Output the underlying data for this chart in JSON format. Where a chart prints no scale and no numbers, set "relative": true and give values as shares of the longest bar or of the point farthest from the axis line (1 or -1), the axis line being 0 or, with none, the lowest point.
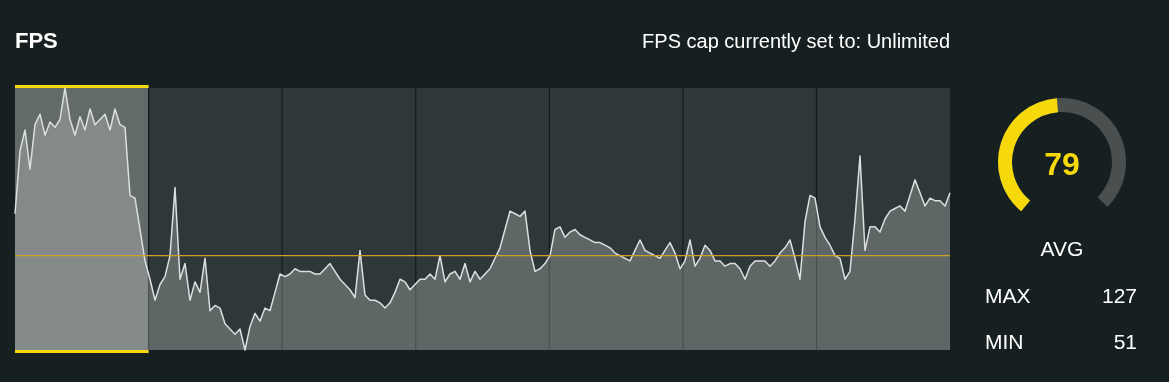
{
  "chart_data": [
    {
      "type": "area",
      "title": "FPS",
      "subtitle": "FPS cap currently set to: Unlimited",
      "relative": true,
      "categories": [
        null,
        null,
        null,
        null,
        null,
        null,
        null,
        null,
        null,
        null,
        null,
        null,
        null,
        null,
        null,
        null,
        null,
        null,
        null,
        null,
        null,
        null,
        null,
        null,
        null,
        null,
        null,
        null,
        null,
        null,
        null,
        null,
        null,
        null,
        null,
        null,
        null,
        null,
        null,
        null,
        null,
        null,
        null,
        null,
        null,
        null,
        null,
        null,
        null,
        null,
        null,
        null,
        null,
        null,
        null,
        null,
        null,
        null,
        null,
        null,
        null,
        null,
        null,
        null,
        null,
        null,
        null,
        null,
        null,
        null,
        null,
        null,
        null,
        null,
        null,
        null,
        null,
        null,
        null,
        null,
        null,
        null,
        null,
        null,
        null,
        null,
        null,
        null,
        null,
        null,
        null,
        null,
        null,
        null,
        null,
        null,
        null,
        null,
        null,
        null,
        null,
        null,
        null,
        null,
        null,
        null,
        null,
        null,
        null,
        null,
        null,
        null,
        null,
        null,
        null,
        null,
        null,
        null,
        null,
        null,
        null,
        null,
        null,
        null,
        null,
        null,
        null,
        null,
        null,
        null,
        null,
        null,
        null,
        null,
        null,
        null,
        null,
        null,
        null,
        null,
        null,
        null,
        null,
        null,
        null,
        null,
        null,
        null,
        null,
        null,
        null,
        null,
        null,
        null,
        null,
        null,
        null,
        null,
        null,
        null,
        null,
        null,
        null,
        null,
        null,
        null,
        null,
        null,
        null,
        null,
        null,
        null,
        null,
        null,
        null,
        null,
        null,
        null,
        null,
        null,
        null,
        null,
        null,
        null,
        null,
        null,
        null,
        null
      ],
      "ref_lines": [
        {
          "axis": "y",
          "value": 0.36,
          "color": "#c9a227"
        }
      ],
      "series": [
        {
          "color": "#dcdfdf",
          "values": [
            0.52,
            0.76,
            0.84,
            0.69,
            0.86,
            0.9,
            0.82,
            0.87,
            0.85,
            0.88,
            1,
            0.88,
            0.82,
            0.89,
            0.84,
            0.92,
            0.86,
            0.88,
            0.9,
            0.84,
            0.92,
            0.86,
            0.85,
            0.59,
            0.58,
            0.46,
            0.34,
            0.27,
            0.19,
            0.25,
            0.28,
            0.36,
            0.62,
            0.27,
            0.33,
            0.19,
            0.26,
            0.22,
            0.35,
            0.15,
            0.17,
            0.16,
            0.1,
            0.08,
            0.06,
            0.08,
            0,
            0.09,
            0.14,
            0.11,
            0.16,
            0.15,
            0.22,
            0.29,
            0.28,
            0.29,
            0.31,
            0.3,
            0.3,
            0.3,
            0.29,
            0.29,
            0.31,
            0.33,
            0.3,
            0.27,
            0.25,
            0.23,
            0.2,
            0.38,
            0.21,
            0.19,
            0.19,
            0.18,
            0.16,
            0.18,
            0.22,
            0.27,
            0.26,
            0.23,
            0.25,
            0.27,
            0.27,
            0.29,
            0.27,
            0.36,
            0.26,
            0.29,
            0.3,
            0.27,
            0.33,
            0.26,
            0.3,
            0.27,
            0.29,
            0.31,
            0.35,
            0.39,
            0.46,
            0.53,
            0.52,
            0.51,
            0.53,
            0.38,
            0.3,
            0.31,
            0.33,
            0.36,
            0.46,
            0.47,
            0.43,
            0.45,
            0.46,
            0.44,
            0.43,
            0.42,
            0.41,
            0.41,
            0.4,
            0.39,
            0.37,
            0.36,
            0.35,
            0.34,
            0.38,
            0.42,
            0.38,
            0.37,
            0.36,
            0.35,
            0.38,
            0.41,
            0.37,
            0.31,
            0.34,
            0.42,
            0.32,
            0.35,
            0.4,
            0.38,
            0.34,
            0.34,
            0.32,
            0.33,
            0.33,
            0.31,
            0.27,
            0.32,
            0.34,
            0.34,
            0.34,
            0.32,
            0.34,
            0.37,
            0.39,
            0.42,
            0.35,
            0.27,
            0.49,
            0.59,
            0.58,
            0.47,
            0.43,
            0.4,
            0.36,
            0.35,
            0.27,
            0.3,
            0.5,
            0.74,
            0.38,
            0.47,
            0.47,
            0.45,
            0.5,
            0.53,
            0.54,
            0.55,
            0.53,
            0.59,
            0.65,
            0.6,
            0.55,
            0.58,
            0.57,
            0.57,
            0.55,
            0.6
          ]
        }
      ]
    },
    {
      "type": "other",
      "annotations": [
        "79",
        "AVG",
        "MAX",
        "127",
        "MIN",
        "51"
      ]
    }
  ]
}
